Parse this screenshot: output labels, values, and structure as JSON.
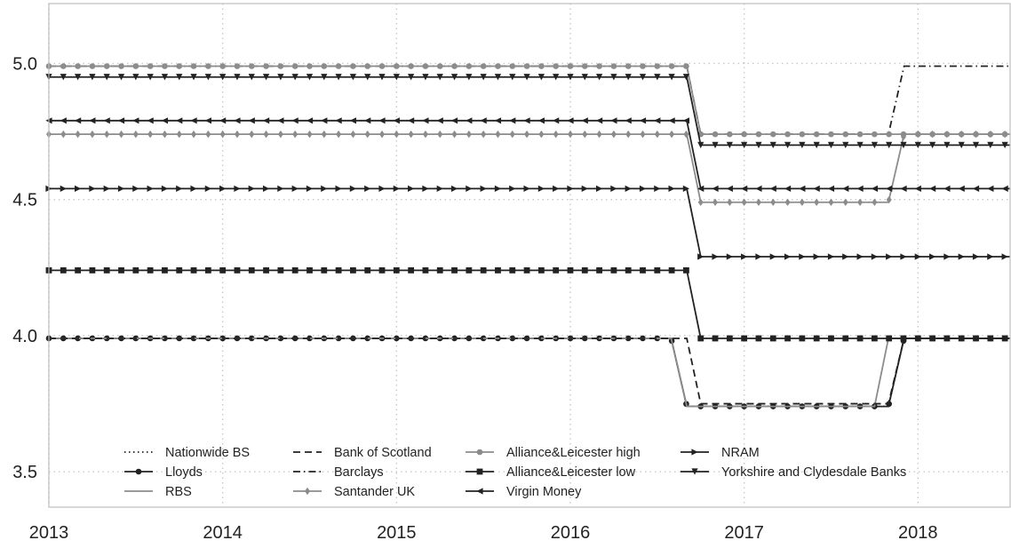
{
  "chart_data": {
    "type": "line",
    "title": "",
    "xlabel": "",
    "ylabel": "",
    "xlim": [
      2013.0,
      2018.53
    ],
    "ylim": [
      3.37,
      5.22
    ],
    "x_ticks": [
      2013,
      2014,
      2015,
      2016,
      2017,
      2018
    ],
    "x_tick_labels": [
      "2013",
      "2014",
      "2015",
      "2016",
      "2017",
      "2018"
    ],
    "y_ticks": [
      3.5,
      4.0,
      4.5,
      5.0
    ],
    "y_tick_labels": [
      "3.5",
      "4.0",
      "4.5",
      "5.0"
    ],
    "grid": true,
    "legend": {
      "placement": "bottom-left",
      "columns": 4
    },
    "sampling_step": 0.0833333,
    "series": [
      {
        "name": "Nationwide BS",
        "color": "#222222",
        "dash": "dotted",
        "marker": "none",
        "points": [
          [
            2013.0,
            3.99
          ],
          [
            2016.58,
            3.99
          ],
          [
            2016.67,
            3.74
          ],
          [
            2017.83,
            3.74
          ],
          [
            2017.92,
            3.99
          ],
          [
            2018.53,
            3.99
          ]
        ]
      },
      {
        "name": "Lloyds",
        "color": "#222222",
        "dash": "solid",
        "marker": "circle",
        "points": [
          [
            2013.0,
            3.99
          ],
          [
            2016.58,
            3.99
          ],
          [
            2016.67,
            3.74
          ],
          [
            2017.83,
            3.74
          ],
          [
            2017.92,
            3.99
          ],
          [
            2018.53,
            3.99
          ]
        ]
      },
      {
        "name": "RBS",
        "color": "#8c8c8c",
        "dash": "solid",
        "marker": "none",
        "points": [
          [
            2013.0,
            3.99
          ],
          [
            2016.58,
            3.99
          ],
          [
            2016.67,
            3.74
          ],
          [
            2017.75,
            3.74
          ],
          [
            2017.83,
            3.99
          ],
          [
            2018.53,
            3.99
          ]
        ]
      },
      {
        "name": "Bank of Scotland",
        "color": "#222222",
        "dash": "dashed",
        "marker": "none",
        "points": [
          [
            2013.0,
            3.99
          ],
          [
            2016.67,
            3.99
          ],
          [
            2016.75,
            3.75
          ],
          [
            2017.83,
            3.75
          ],
          [
            2017.92,
            3.99
          ],
          [
            2018.53,
            3.99
          ]
        ]
      },
      {
        "name": "Barclays",
        "color": "#222222",
        "dash": "dashdot",
        "marker": "none",
        "points": [
          [
            2013.0,
            4.99
          ],
          [
            2016.67,
            4.99
          ],
          [
            2016.75,
            4.74
          ],
          [
            2017.83,
            4.74
          ],
          [
            2017.92,
            4.99
          ],
          [
            2018.53,
            4.99
          ]
        ]
      },
      {
        "name": "Santander UK",
        "color": "#8c8c8c",
        "dash": "solid",
        "marker": "diamond",
        "points": [
          [
            2013.0,
            4.74
          ],
          [
            2016.67,
            4.74
          ],
          [
            2016.75,
            4.49
          ],
          [
            2017.83,
            4.49
          ],
          [
            2017.92,
            4.74
          ],
          [
            2018.53,
            4.74
          ]
        ]
      },
      {
        "name": "Alliance&Leicester high",
        "color": "#8c8c8c",
        "dash": "solid",
        "marker": "circle",
        "points": [
          [
            2013.0,
            4.99
          ],
          [
            2016.67,
            4.99
          ],
          [
            2016.75,
            4.74
          ],
          [
            2018.53,
            4.74
          ]
        ]
      },
      {
        "name": "Alliance&Leicester low",
        "color": "#222222",
        "dash": "solid",
        "marker": "square",
        "points": [
          [
            2013.0,
            4.24
          ],
          [
            2016.67,
            4.24
          ],
          [
            2016.75,
            3.99
          ],
          [
            2018.53,
            3.99
          ]
        ]
      },
      {
        "name": "Virgin Money",
        "color": "#222222",
        "dash": "solid",
        "marker": "tri-left",
        "points": [
          [
            2013.0,
            4.79
          ],
          [
            2016.67,
            4.79
          ],
          [
            2016.75,
            4.54
          ],
          [
            2018.53,
            4.54
          ]
        ]
      },
      {
        "name": "NRAM",
        "color": "#222222",
        "dash": "solid",
        "marker": "tri-right",
        "points": [
          [
            2013.0,
            4.54
          ],
          [
            2016.67,
            4.54
          ],
          [
            2016.75,
            4.29
          ],
          [
            2018.53,
            4.29
          ]
        ]
      },
      {
        "name": "Yorkshire and Clydesdale Banks",
        "color": "#222222",
        "dash": "solid",
        "marker": "tri-down",
        "points": [
          [
            2013.0,
            4.95
          ],
          [
            2016.67,
            4.95
          ],
          [
            2016.75,
            4.7
          ],
          [
            2018.53,
            4.7
          ]
        ]
      }
    ]
  }
}
